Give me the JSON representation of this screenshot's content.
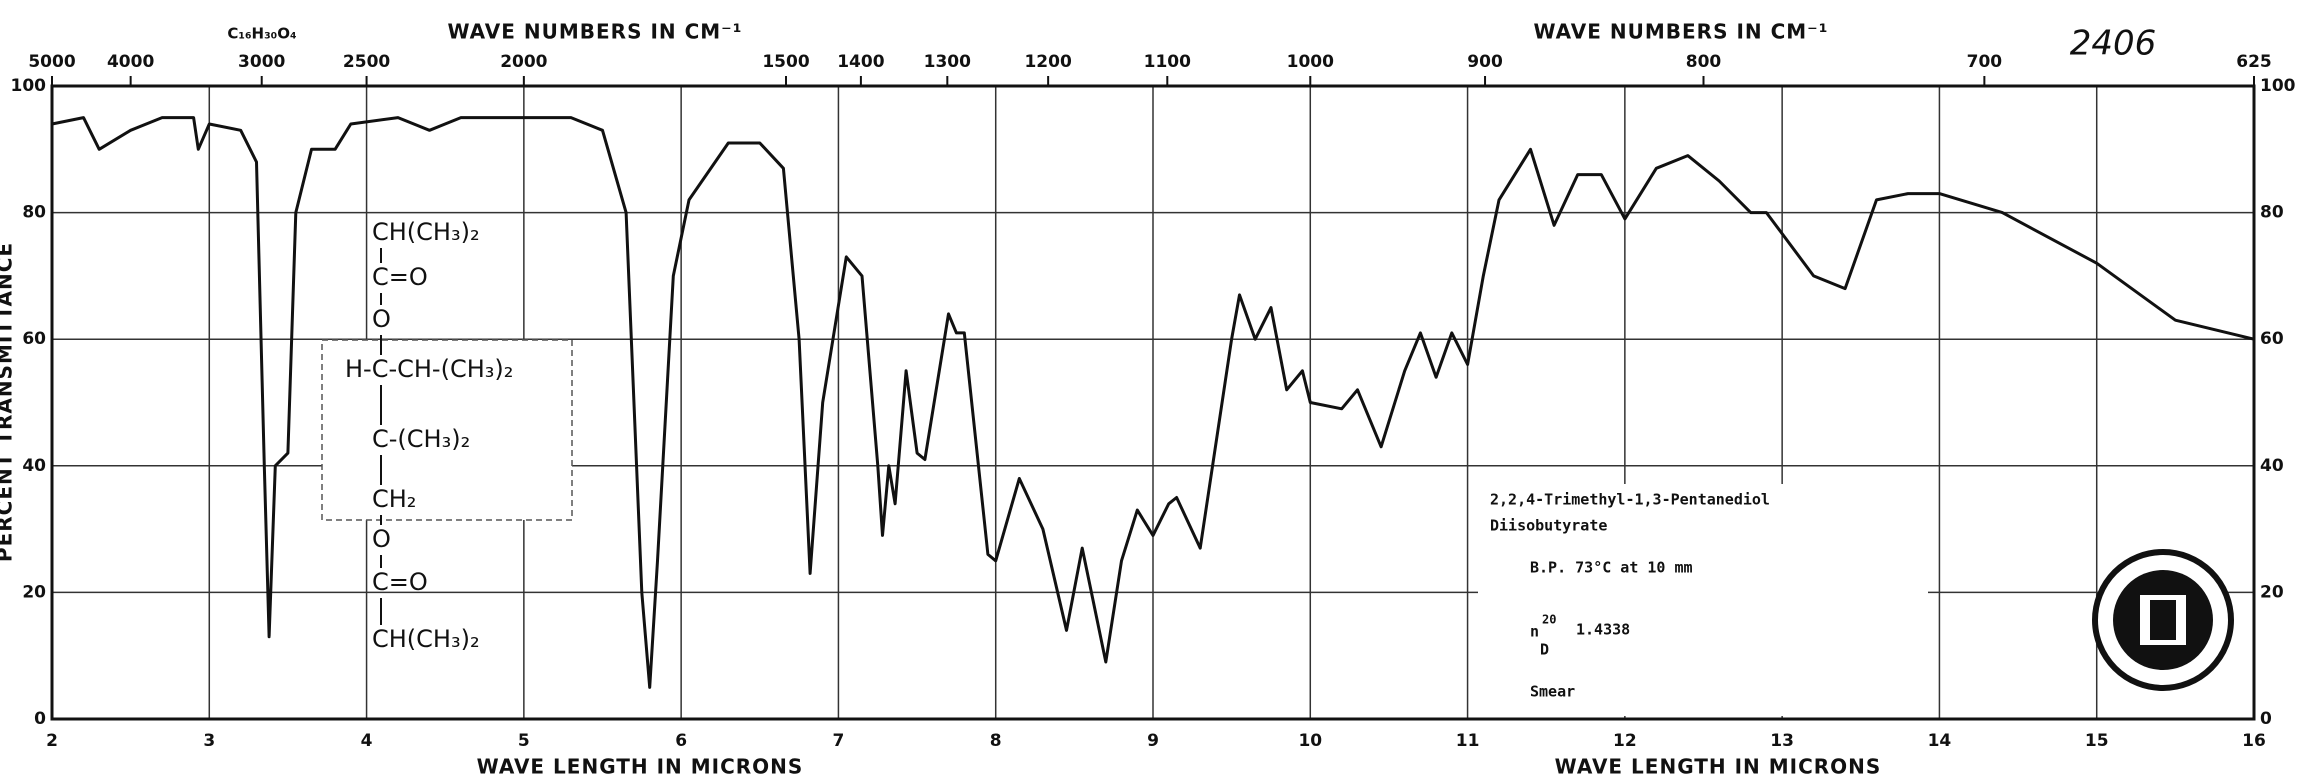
{
  "chart_data": {
    "type": "line",
    "top_axis_title": "WAVE NUMBERS IN CM⁻¹",
    "top_axis_title_right": "WAVE NUMBERS IN CM⁻¹",
    "xlabel": "WAVE LENGTH IN MICRONS",
    "xlabel_right": "WAVE LENGTH IN MICRONS",
    "ylabel": "PERCENT TRANSMITTANCE",
    "spectrum_number": "2406",
    "formula": "C₁₆H₃₀O₄",
    "structure": [
      "CH(CH₃)₂",
      "C=O",
      "O",
      "H-C-CH-(CH₃)₂",
      "C-(CH₃)₂",
      "CH₂",
      "O",
      "C=O",
      "CH(CH₃)₂"
    ],
    "compound": [
      "2,2,4-Trimethyl-1,3-Pentanediol",
      "Diisobutyrate"
    ],
    "boiling_point": "B.P. 73°C at 10 mm",
    "refractive_index": {
      "symbol": "n",
      "sup": "20",
      "sub": "D",
      "value": "1.4338"
    },
    "sample": "Smear",
    "color": "#111111",
    "grid": true,
    "xlim": [
      2,
      16
    ],
    "xticks": [
      2,
      3,
      4,
      5,
      6,
      7,
      8,
      9,
      10,
      11,
      12,
      13,
      14,
      15,
      16
    ],
    "ylim": [
      0,
      100
    ],
    "yticks": [
      0,
      20,
      40,
      60,
      80,
      100
    ],
    "x2ticks": [
      5000,
      4000,
      3000,
      2500,
      2000,
      1500,
      1400,
      1300,
      1200,
      1100,
      1000,
      900,
      800,
      700,
      625
    ],
    "x": [
      2.0,
      2.2,
      2.3,
      2.5,
      2.7,
      2.9,
      2.93,
      3.0,
      3.2,
      3.3,
      3.35,
      3.38,
      3.42,
      3.5,
      3.55,
      3.65,
      3.8,
      3.9,
      4.2,
      4.4,
      4.6,
      5.0,
      5.3,
      5.5,
      5.65,
      5.75,
      5.8,
      5.85,
      5.95,
      6.05,
      6.3,
      6.5,
      6.65,
      6.75,
      6.82,
      6.9,
      7.05,
      7.15,
      7.25,
      7.28,
      7.32,
      7.36,
      7.43,
      7.5,
      7.55,
      7.7,
      7.75,
      7.8,
      7.95,
      8.0,
      8.15,
      8.3,
      8.45,
      8.55,
      8.6,
      8.7,
      8.8,
      8.9,
      9.0,
      9.1,
      9.15,
      9.3,
      9.5,
      9.55,
      9.65,
      9.75,
      9.85,
      9.95,
      10.0,
      10.2,
      10.3,
      10.45,
      10.6,
      10.7,
      10.8,
      10.9,
      11.0,
      11.1,
      11.2,
      11.4,
      11.55,
      11.7,
      11.85,
      12.0,
      12.2,
      12.4,
      12.6,
      12.8,
      12.9,
      13.2,
      13.4,
      13.6,
      13.8,
      14.0,
      14.4,
      15.0,
      15.5,
      16.0
    ],
    "values": [
      94,
      95,
      90,
      93,
      95,
      95,
      90,
      94,
      93,
      88,
      40,
      13,
      40,
      42,
      80,
      90,
      90,
      94,
      95,
      93,
      95,
      95,
      95,
      93,
      80,
      20,
      5,
      25,
      70,
      82,
      91,
      91,
      87,
      60,
      23,
      50,
      73,
      70,
      40,
      29,
      40,
      34,
      55,
      42,
      41,
      64,
      61,
      61,
      26,
      25,
      38,
      30,
      14,
      27,
      21,
      9,
      25,
      33,
      29,
      34,
      35,
      27,
      60,
      67,
      60,
      65,
      52,
      55,
      50,
      49,
      52,
      43,
      55,
      61,
      54,
      61,
      56,
      70,
      82,
      90,
      78,
      86,
      86,
      79,
      87,
      89,
      85,
      80,
      80,
      70,
      68,
      82,
      83,
      83,
      80,
      72,
      63,
      60
    ]
  }
}
